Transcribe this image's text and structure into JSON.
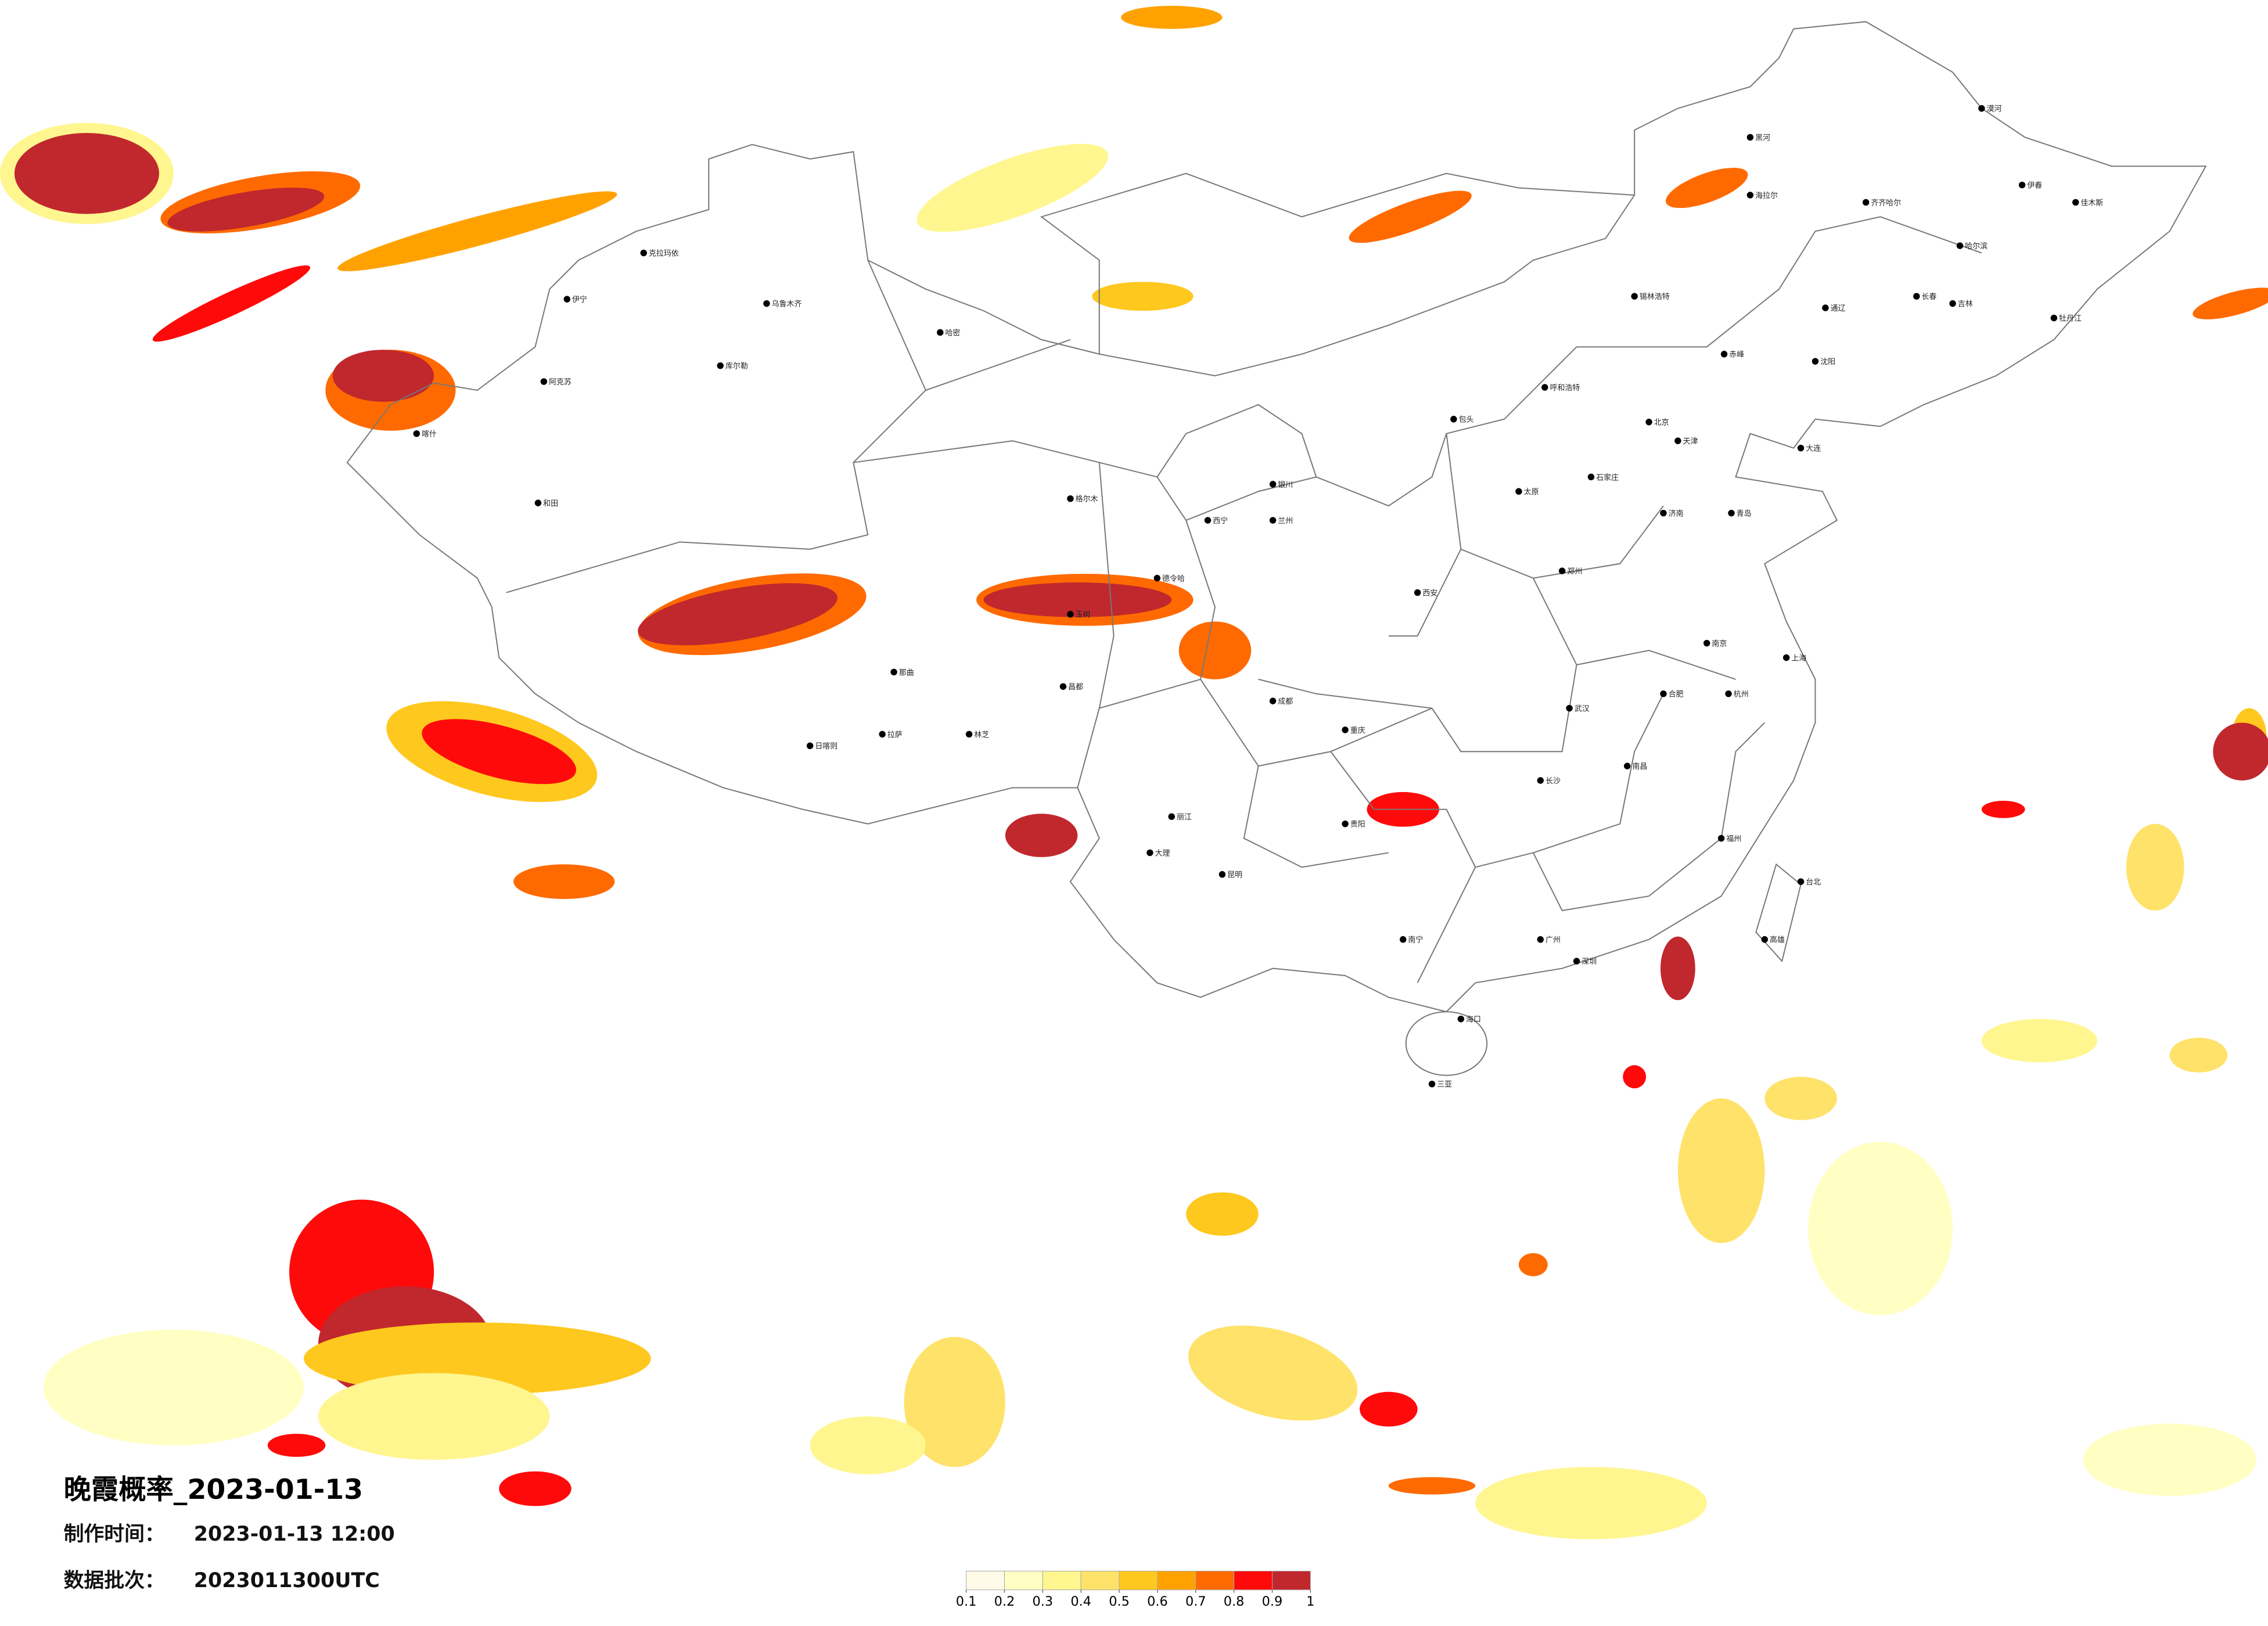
{
  "title": "晚霞概率_2023-01-13",
  "info": [
    {
      "label": "制作时间：",
      "value": "2023-01-13 12:00"
    },
    {
      "label": "数据批次：",
      "value": "2023011300UTC"
    }
  ],
  "legend": {
    "colors": [
      "#fffbe8",
      "#ffffc4",
      "#fff68f",
      "#ffe26a",
      "#ffc81e",
      "#ffa200",
      "#ff6a00",
      "#ff0a0a",
      "#c0282d"
    ],
    "ticks": [
      0.1,
      0.2,
      0.3,
      0.4,
      0.5,
      0.6,
      0.7,
      0.8,
      0.9,
      1
    ]
  },
  "cities": [
    "漠河",
    "黑河",
    "海拉尔",
    "齐齐哈尔",
    "哈尔滨",
    "伊春",
    "佳木斯",
    "牡丹江",
    "长春",
    "吉林",
    "沈阳",
    "大连",
    "通辽",
    "赤峰",
    "锡林浩特",
    "呼和浩特",
    "包头",
    "北京",
    "天津",
    "石家庄",
    "太原",
    "济南",
    "青岛",
    "郑州",
    "西安",
    "兰州",
    "西宁",
    "银川",
    "乌鲁木齐",
    "伊宁",
    "阿克苏",
    "喀什",
    "和田",
    "克拉玛依",
    "哈密",
    "格尔木",
    "拉萨",
    "日喀则",
    "林芝",
    "成都",
    "重庆",
    "贵阳",
    "昆明",
    "南宁",
    "广州",
    "深圳",
    "海口",
    "三亚",
    "长沙",
    "武汉",
    "南昌",
    "福州",
    "杭州",
    "上海",
    "南京",
    "合肥",
    "台北",
    "高雄",
    "大理",
    "丽江",
    "玉树",
    "德令哈",
    "库尔勒",
    "那曲",
    "昌都"
  ]
}
